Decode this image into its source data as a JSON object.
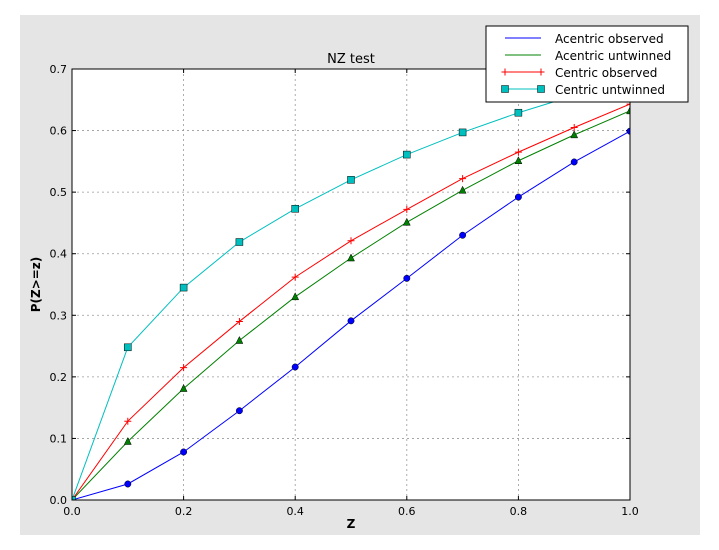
{
  "chart_data": {
    "type": "line",
    "title": "NZ test",
    "xlabel": "Z",
    "ylabel": "P(Z>=z)",
    "xlim": [
      0,
      1
    ],
    "ylim": [
      0,
      0.7
    ],
    "xticks": [
      "0.0",
      "0.2",
      "0.4",
      "0.6",
      "0.8",
      "1.0"
    ],
    "yticks": [
      "0.0",
      "0.1",
      "0.2",
      "0.3",
      "0.4",
      "0.5",
      "0.6",
      "0.7"
    ],
    "grid": true,
    "legend_position": "top-right",
    "x": [
      0,
      0.1,
      0.2,
      0.3,
      0.4,
      0.5,
      0.6,
      0.7,
      0.8,
      0.9,
      1.0
    ],
    "series": [
      {
        "name": "Acentric observed",
        "color": "#0000ff",
        "marker": "circle",
        "values": [
          0,
          0.026,
          0.078,
          0.145,
          0.216,
          0.291,
          0.36,
          0.43,
          0.492,
          0.549,
          0.599
        ]
      },
      {
        "name": "Acentric untwinned",
        "color": "#008000",
        "marker": "triangle",
        "values": [
          0,
          0.095,
          0.181,
          0.259,
          0.33,
          0.393,
          0.451,
          0.503,
          0.551,
          0.593,
          0.632
        ]
      },
      {
        "name": "Centric observed",
        "color": "#ff0000",
        "marker": "plus",
        "values": [
          0,
          0.128,
          0.215,
          0.29,
          0.362,
          0.421,
          0.472,
          0.522,
          0.565,
          0.605,
          0.643
        ]
      },
      {
        "name": "Centric untwinned",
        "color": "#00bfbf",
        "marker": "square",
        "values": [
          0,
          0.248,
          0.345,
          0.419,
          0.473,
          0.52,
          0.561,
          0.597,
          0.629,
          0.657,
          0.683
        ]
      }
    ]
  }
}
